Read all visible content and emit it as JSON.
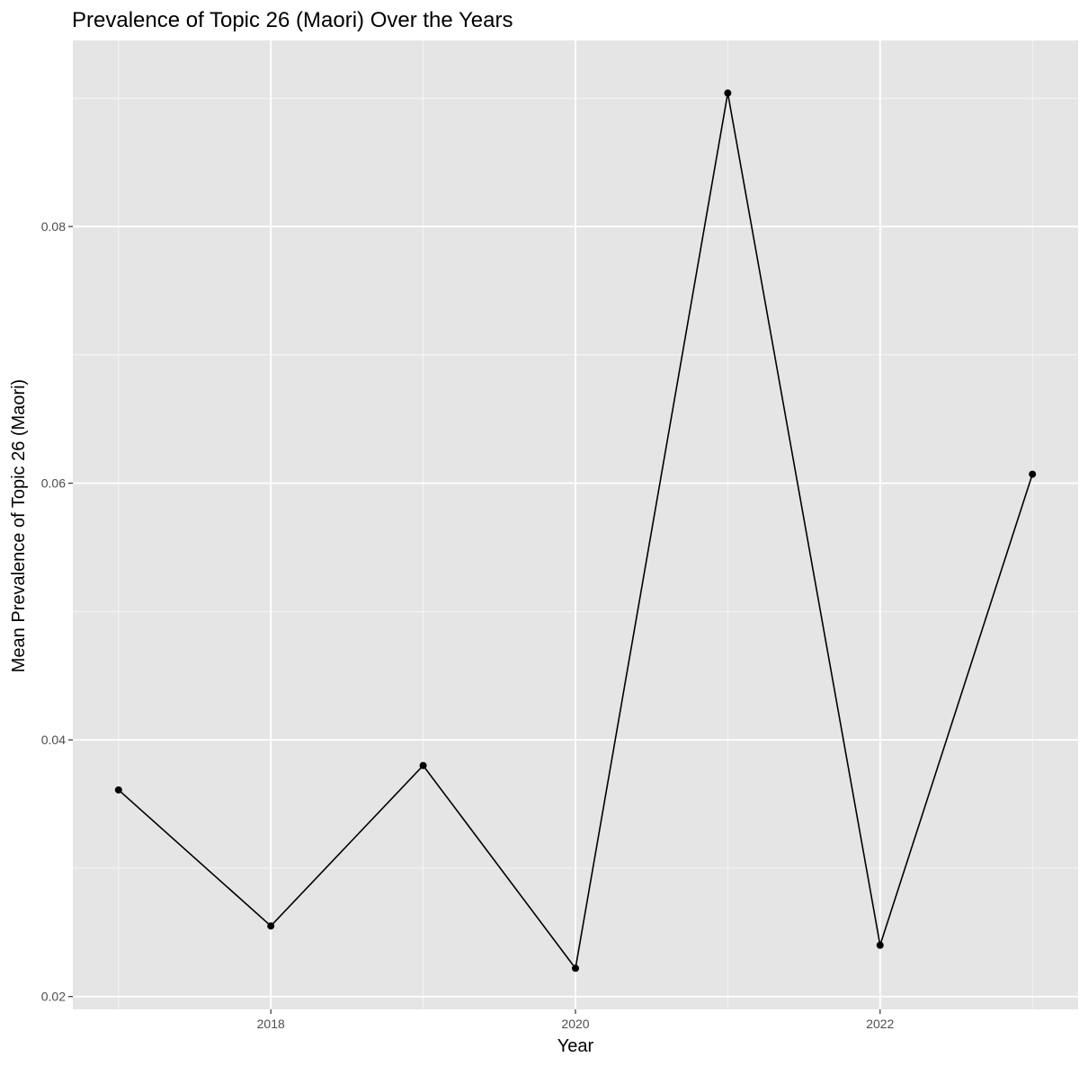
{
  "chart_data": {
    "type": "line",
    "title": "Prevalence of Topic 26 (Maori) Over the Years",
    "xlabel": "Year",
    "ylabel": "Mean Prevalence of Topic 26 (Maori)",
    "x": [
      2017,
      2018,
      2019,
      2020,
      2021,
      2022,
      2023
    ],
    "series": [
      {
        "values": [
          0.0361,
          0.0255,
          0.038,
          0.0222,
          0.0904,
          0.024,
          0.0607
        ]
      }
    ],
    "xlim": [
      2016.7,
      2023.3
    ],
    "ylim": [
      0.019,
      0.0945
    ],
    "x_ticks": [
      2018,
      2020,
      2022
    ],
    "x_tick_labels": [
      "2018",
      "2020",
      "2022"
    ],
    "y_ticks": [
      0.02,
      0.04,
      0.06,
      0.08
    ],
    "y_tick_labels": [
      "0.02",
      "0.04",
      "0.06",
      "0.08"
    ],
    "x_minor_ticks": [
      2017,
      2019,
      2021,
      2023
    ],
    "y_minor_ticks": [
      0.03,
      0.05,
      0.07,
      0.09
    ],
    "grid": true,
    "colors": {
      "panel_background": "#e5e5e5",
      "grid_major": "#ffffff",
      "line": "#000000",
      "point": "#000000",
      "tick_text": "#4d4d4d",
      "tick_mark": "#333333"
    }
  }
}
